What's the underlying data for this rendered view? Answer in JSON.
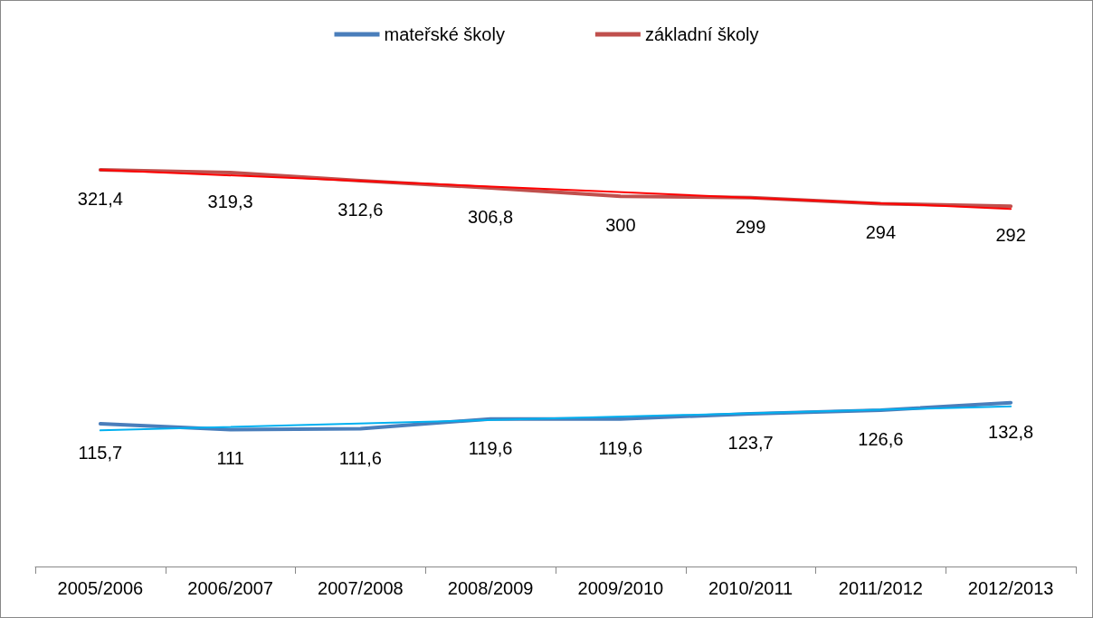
{
  "chart_data": {
    "type": "line",
    "categories": [
      "2005/2006",
      "2006/2007",
      "2007/2008",
      "2008/2009",
      "2009/2010",
      "2010/2011",
      "2011/2012",
      "2012/2013"
    ],
    "series": [
      {
        "name": "mateřské školy",
        "color": "#4a7ebb",
        "values": [
          115.7,
          111,
          111.6,
          119.6,
          119.6,
          123.7,
          126.6,
          132.8
        ],
        "value_labels": [
          "115,7",
          "111",
          "111,6",
          "119,6",
          "119,6",
          "123,7",
          "126,6",
          "132,8"
        ]
      },
      {
        "name": "základní školy",
        "color": "#c0504d",
        "values": [
          321.4,
          319.3,
          312.6,
          306.8,
          300,
          299,
          294,
          292
        ],
        "value_labels": [
          "321,4",
          "319,3",
          "312,6",
          "306,8",
          "300",
          "299",
          "294",
          "292"
        ]
      },
      {
        "type": "line",
        "color": "#00b0f0",
        "x": [
          "2005/2006",
          "2012/2013"
        ],
        "values": [
          110.3,
          129.8
        ]
      },
      {
        "type": "line",
        "color": "#ff0000",
        "x": [
          "2005/2006",
          "2012/2013"
        ],
        "values": [
          321.5,
          289.8
        ]
      }
    ],
    "legend": "top",
    "grid": false,
    "marker": "none",
    "line_style": "solid",
    "tick_labels": "x"
  }
}
